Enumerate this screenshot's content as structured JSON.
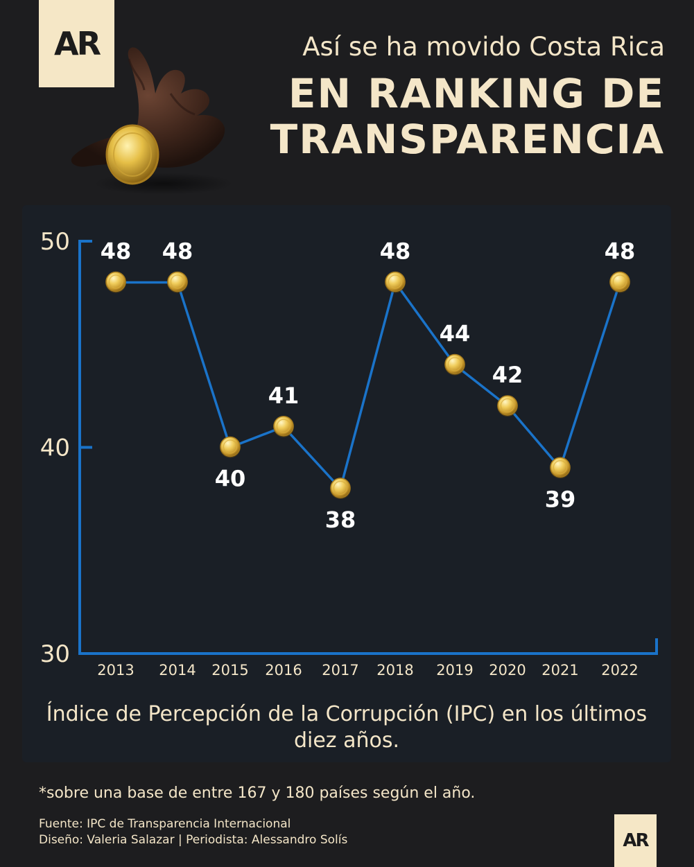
{
  "logo": {
    "text": "AR"
  },
  "header": {
    "subtitle": "Así se ha movido Costa Rica",
    "title_line1": "EN RANKING DE",
    "title_line2": "TRANSPARENCIA"
  },
  "chart_data": {
    "type": "line",
    "categories": [
      "2013",
      "2014",
      "2015",
      "2016",
      "2017",
      "2018",
      "2019",
      "2020",
      "2021",
      "2022"
    ],
    "values": [
      48,
      48,
      40,
      41,
      38,
      48,
      44,
      42,
      39,
      48
    ],
    "ylim": [
      30,
      50
    ],
    "yticks": [
      "30",
      "40",
      "50"
    ],
    "xlabel": "",
    "ylabel": "",
    "grid": false,
    "line_color": "#1a73c9",
    "marker": "gold-coin",
    "axis_color": "#1a73c9"
  },
  "caption": "Índice de Percepción de la Corrupción (IPC) en los últimos diez años.",
  "note": "*sobre una base de entre 167 y 180 países según el año.",
  "credits": {
    "source": "Fuente: IPC de Transparencia Internacional",
    "design": "Diseño: Valeria Salazar | Periodista: Alessandro Solís"
  },
  "colors": {
    "background": "#1d1d1f",
    "panel": "#1a1f26",
    "text": "#f4e6c8",
    "accent": "#1a73c9",
    "coin": "#e8c24a"
  }
}
